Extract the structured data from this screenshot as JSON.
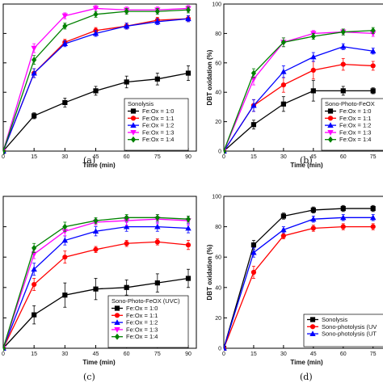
{
  "chart_data": [
    {
      "type": "line",
      "caption": "(a)",
      "xlabel": "Time (min)",
      "ylabel": "",
      "x": [
        0,
        15,
        30,
        45,
        60,
        75,
        90
      ],
      "xlim": [
        0,
        90
      ],
      "ylim": [
        0,
        100
      ],
      "y_tick_labels_visible": false,
      "legend_title": "Sonolysis",
      "legend_position": "bottom-right",
      "series": [
        {
          "name": "Fe:Ox = 1:0",
          "color": "#000000",
          "marker": "square",
          "values": [
            0,
            24,
            33,
            41,
            47,
            49,
            53
          ],
          "errors": [
            2,
            2,
            3,
            3,
            4,
            4,
            5
          ]
        },
        {
          "name": "Fe:Ox = 1:1",
          "color": "#ff0000",
          "marker": "circle",
          "values": [
            0,
            53,
            74,
            82,
            85,
            89,
            90
          ],
          "errors": [
            2,
            3,
            2,
            2,
            2,
            2,
            2
          ]
        },
        {
          "name": "Fe:Ox = 1:2",
          "color": "#0000ff",
          "marker": "triangle-up",
          "values": [
            0,
            53,
            73,
            80,
            85,
            88,
            90
          ],
          "errors": [
            2,
            3,
            2,
            2,
            2,
            2,
            2
          ]
        },
        {
          "name": "Fe:Ox = 1:3",
          "color": "#ff00ff",
          "marker": "triangle-down",
          "values": [
            0,
            70,
            92,
            97,
            96,
            96,
            97
          ],
          "errors": [
            2,
            3,
            2,
            2,
            2,
            2,
            2
          ]
        },
        {
          "name": "Fe:Ox = 1:4",
          "color": "#008000",
          "marker": "diamond",
          "values": [
            0,
            62,
            85,
            93,
            95,
            95,
            96
          ],
          "errors": [
            2,
            3,
            2,
            2,
            2,
            2,
            2
          ]
        }
      ]
    },
    {
      "type": "line",
      "caption": "(b)",
      "xlabel": "Time (min)",
      "ylabel": "DBT oxidation (%)",
      "x": [
        0,
        15,
        30,
        45,
        60,
        75
      ],
      "xlim": [
        0,
        80
      ],
      "ylim": [
        0,
        100
      ],
      "y_ticks": [
        0,
        20,
        40,
        60,
        80,
        100
      ],
      "legend_title": "Sono-Photo-FeOX",
      "legend_position": "bottom-right",
      "series": [
        {
          "name": "Fe:Ox = 1:0",
          "color": "#000000",
          "marker": "square",
          "values": [
            0,
            18,
            32,
            41,
            41,
            41
          ],
          "errors": [
            1,
            3,
            5,
            7,
            3,
            2
          ]
        },
        {
          "name": "Fe:Ox = 1:1",
          "color": "#ff0000",
          "marker": "circle",
          "values": [
            0,
            31,
            45,
            55,
            59,
            58
          ],
          "errors": [
            1,
            4,
            5,
            6,
            4,
            3
          ]
        },
        {
          "name": "Fe:Ox = 1:2",
          "color": "#0000ff",
          "marker": "triangle-up",
          "values": [
            0,
            31,
            54,
            64,
            71,
            68
          ],
          "errors": [
            1,
            4,
            4,
            3,
            2,
            2
          ]
        },
        {
          "name": "Fe:Ox = 1:3",
          "color": "#ff00ff",
          "marker": "triangle-down",
          "values": [
            0,
            49,
            74,
            80,
            81,
            80
          ],
          "errors": [
            1,
            4,
            3,
            2,
            2,
            2
          ]
        },
        {
          "name": "Fe:Ox = 1:4",
          "color": "#008000",
          "marker": "diamond",
          "values": [
            0,
            53,
            74,
            78,
            81,
            82
          ],
          "errors": [
            1,
            3,
            3,
            2,
            2,
            2
          ]
        }
      ]
    },
    {
      "type": "line",
      "caption": "(c)",
      "xlabel": "Time (min)",
      "ylabel": "",
      "x": [
        0,
        15,
        30,
        45,
        60,
        75,
        90
      ],
      "xlim": [
        0,
        90
      ],
      "ylim": [
        0,
        100
      ],
      "y_tick_labels_visible": false,
      "legend_title": "Sono-Photo-FeOX (UVC)",
      "legend_position": "bottom-right",
      "series": [
        {
          "name": "Fe:Ox = 1:0",
          "color": "#000000",
          "marker": "square",
          "values": [
            0,
            22,
            35,
            39,
            40,
            43,
            46
          ],
          "errors": [
            1,
            6,
            8,
            7,
            5,
            6,
            6
          ]
        },
        {
          "name": "Fe:Ox = 1:1",
          "color": "#ff0000",
          "marker": "circle",
          "values": [
            0,
            42,
            60,
            65,
            69,
            70,
            68
          ],
          "errors": [
            1,
            4,
            4,
            2,
            2,
            2,
            3
          ]
        },
        {
          "name": "Fe:Ox = 1:2",
          "color": "#0000ff",
          "marker": "triangle-up",
          "values": [
            0,
            52,
            71,
            77,
            80,
            80,
            79
          ],
          "errors": [
            1,
            4,
            3,
            3,
            3,
            3,
            3
          ]
        },
        {
          "name": "Fe:Ox = 1:3",
          "color": "#ff00ff",
          "marker": "triangle-down",
          "values": [
            0,
            62,
            77,
            83,
            84,
            85,
            84
          ],
          "errors": [
            1,
            3,
            3,
            2,
            3,
            3,
            3
          ]
        },
        {
          "name": "Fe:Ox = 1:4",
          "color": "#008000",
          "marker": "diamond",
          "values": [
            0,
            66,
            80,
            84,
            86,
            86,
            85
          ],
          "errors": [
            1,
            3,
            3,
            2,
            2,
            2,
            2
          ]
        }
      ]
    },
    {
      "type": "line",
      "caption": "(d)",
      "xlabel": "Time (min)",
      "ylabel": "DBT oxidation (%)",
      "x": [
        0,
        15,
        30,
        45,
        60,
        75
      ],
      "xlim": [
        0,
        80
      ],
      "ylim": [
        0,
        100
      ],
      "y_ticks": [
        0,
        20,
        40,
        60,
        80,
        100
      ],
      "legend_title": "",
      "legend_position": "bottom-right",
      "series": [
        {
          "name": "Sonolysis",
          "color": "#000000",
          "marker": "square",
          "values": [
            0,
            68,
            87,
            91,
            92,
            92
          ],
          "errors": [
            1,
            3,
            2,
            2,
            2,
            2
          ]
        },
        {
          "name": "Sono-photolysis (UV",
          "color": "#ff0000",
          "marker": "circle",
          "values": [
            0,
            50,
            74,
            79,
            80,
            80
          ],
          "errors": [
            1,
            4,
            2,
            2,
            2,
            2
          ]
        },
        {
          "name": "Sono-photolysis (UT",
          "color": "#0000ff",
          "marker": "triangle-up",
          "values": [
            0,
            63,
            78,
            85,
            86,
            86
          ],
          "errors": [
            1,
            3,
            2,
            2,
            2,
            2
          ]
        }
      ]
    }
  ]
}
